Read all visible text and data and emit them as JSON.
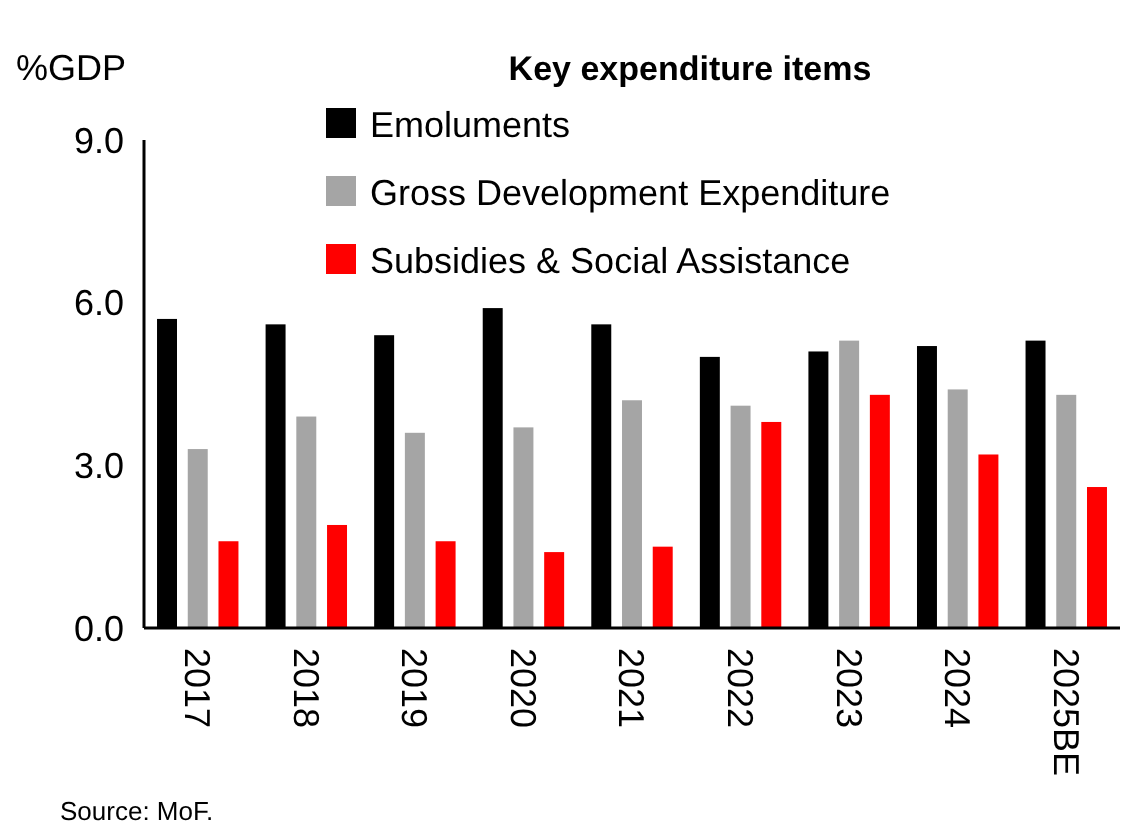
{
  "chart_data": {
    "type": "bar",
    "title": "Key expenditure items",
    "ylabel": "%GDP",
    "categories": [
      "2017",
      "2018",
      "2019",
      "2020",
      "2021",
      "2022",
      "2023",
      "2024",
      "2025BE"
    ],
    "series": [
      {
        "name": "Emoluments",
        "color": "#000000",
        "values": [
          5.7,
          5.6,
          5.4,
          5.9,
          5.6,
          5.0,
          5.1,
          5.2,
          5.3
        ]
      },
      {
        "name": "Gross Development Expenditure",
        "color": "#a5a5a5",
        "values": [
          3.3,
          3.9,
          3.6,
          3.7,
          4.2,
          4.1,
          5.3,
          4.4,
          4.3
        ]
      },
      {
        "name": "Subsidies & Social Assistance",
        "color": "#ff0000",
        "values": [
          1.6,
          1.9,
          1.6,
          1.4,
          1.5,
          3.8,
          4.3,
          3.2,
          2.6
        ]
      }
    ],
    "ylim": [
      0,
      9
    ],
    "yticks": [
      {
        "value": 0,
        "label": "0.0"
      },
      {
        "value": 3,
        "label": "3.0"
      },
      {
        "value": 6,
        "label": "6.0"
      },
      {
        "value": 9,
        "label": "9.0"
      }
    ],
    "grid": false,
    "legend": "top right",
    "annotations": [
      "Source: MoF."
    ]
  }
}
